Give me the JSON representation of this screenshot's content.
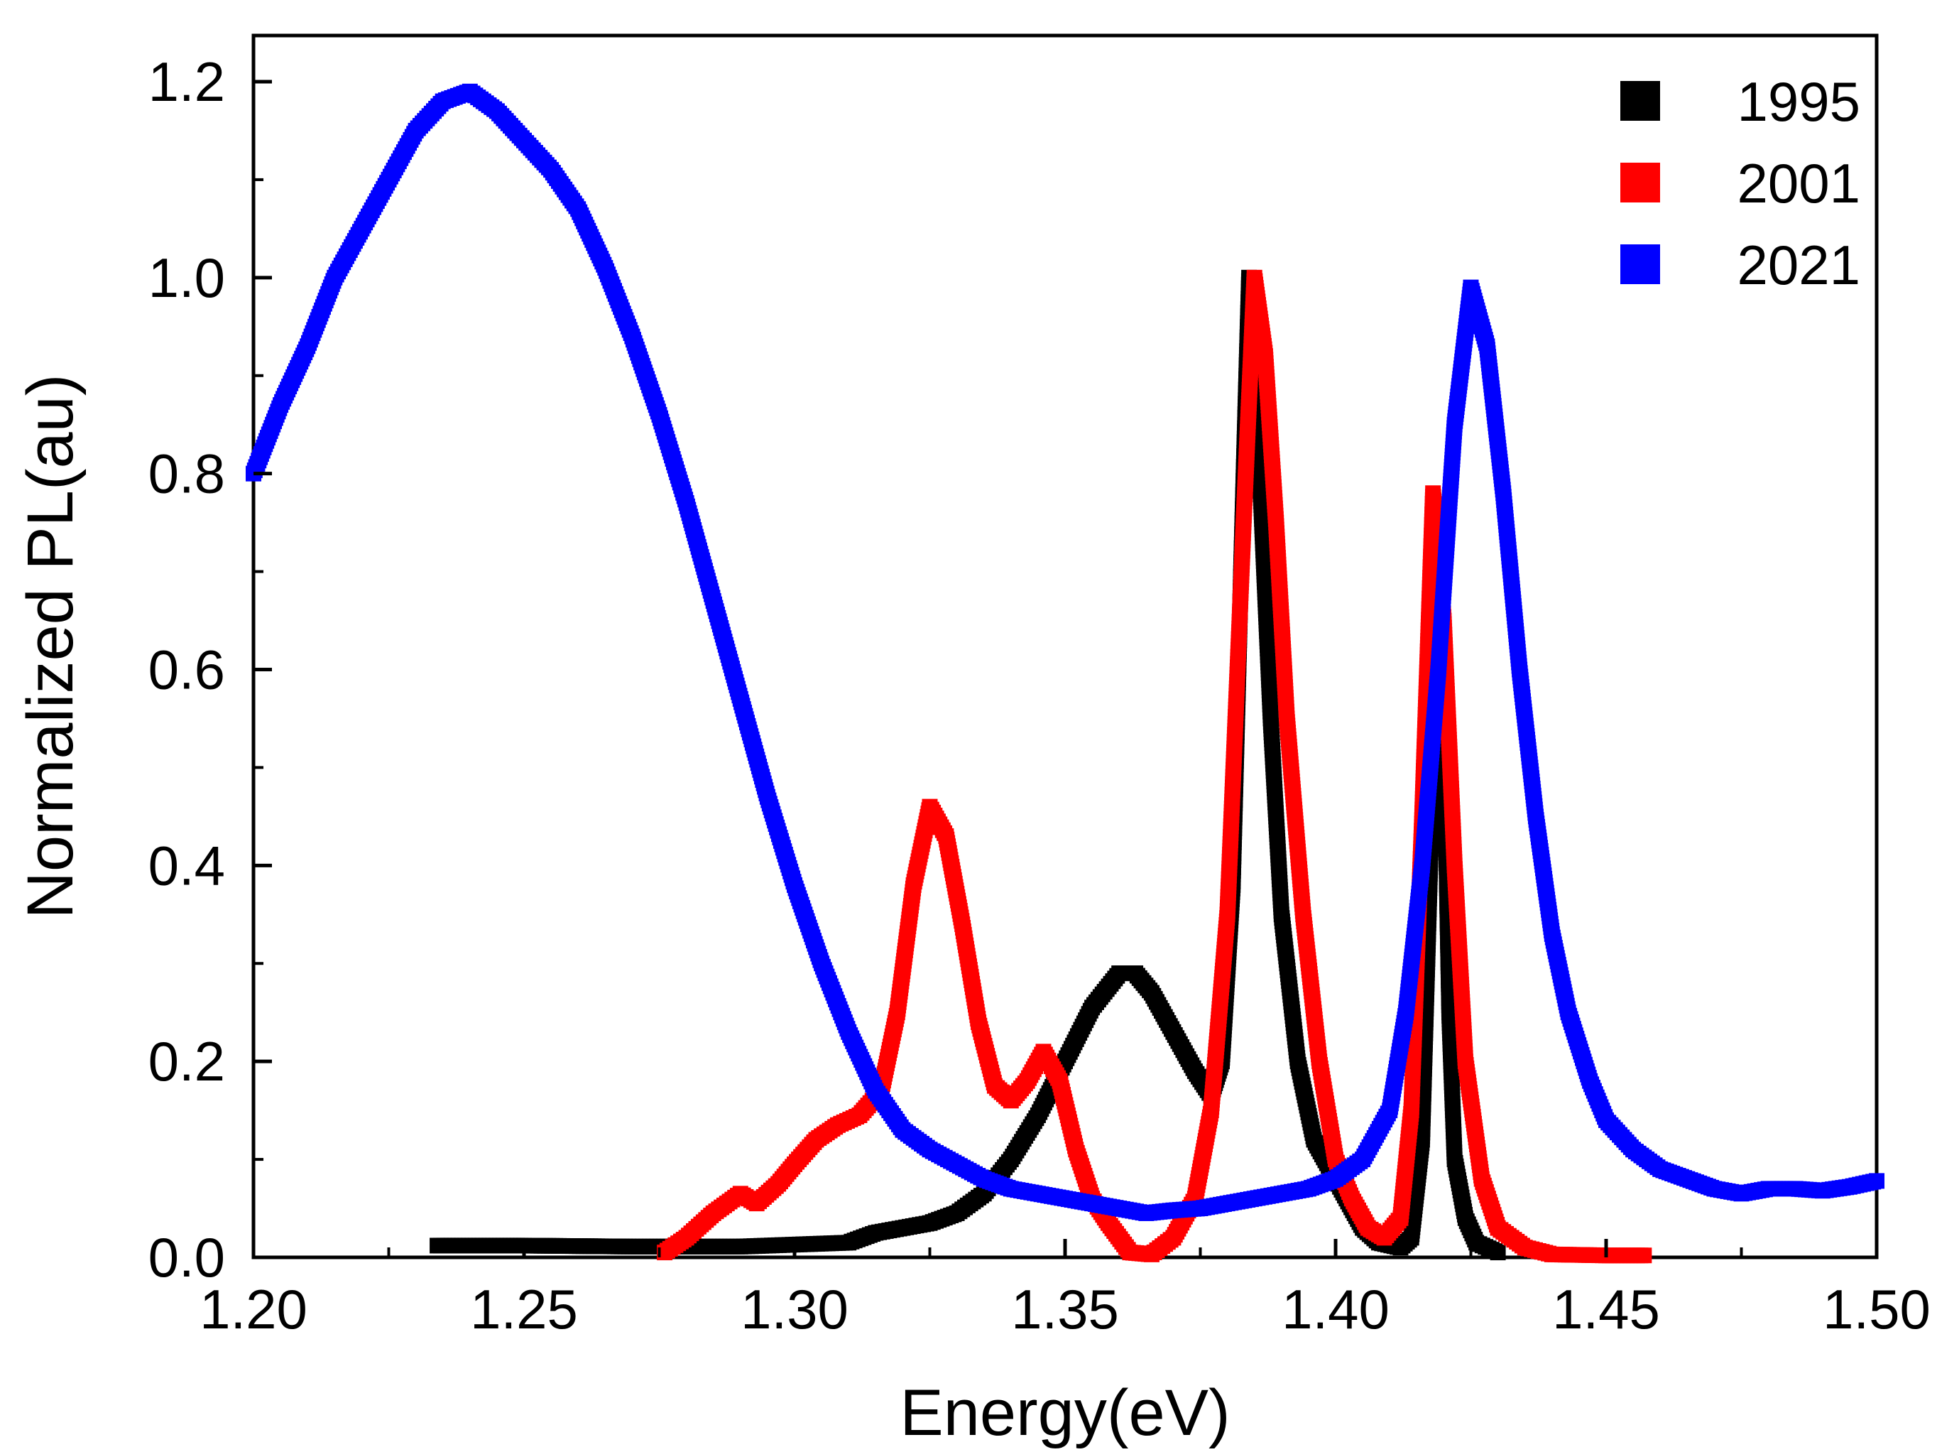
{
  "chart_data": {
    "type": "scatter",
    "title": "",
    "xlabel": "Energy(eV)",
    "ylabel": "Normalized PL(au)",
    "xlim": [
      1.2,
      1.5
    ],
    "ylim": [
      0.0,
      1.25
    ],
    "xticks": [
      1.2,
      1.25,
      1.3,
      1.35,
      1.4,
      1.45,
      1.5
    ],
    "xtick_labels": [
      "1.20",
      "1.25",
      "1.30",
      "1.35",
      "1.40",
      "1.45",
      "1.50"
    ],
    "yticks": [
      0.0,
      0.2,
      0.4,
      0.6,
      0.8,
      1.0,
      1.2
    ],
    "ytick_labels": [
      "0.0",
      "0.2",
      "0.4",
      "0.6",
      "0.8",
      "1.0",
      "1.2"
    ],
    "legend_position": "top-right",
    "series": [
      {
        "name": "1995",
        "color": "#000000",
        "points": [
          [
            1.234,
            0.012
          ],
          [
            1.25,
            0.012
          ],
          [
            1.27,
            0.011
          ],
          [
            1.29,
            0.011
          ],
          [
            1.31,
            0.015
          ],
          [
            1.315,
            0.025
          ],
          [
            1.32,
            0.03
          ],
          [
            1.325,
            0.035
          ],
          [
            1.33,
            0.045
          ],
          [
            1.335,
            0.065
          ],
          [
            1.34,
            0.1
          ],
          [
            1.345,
            0.145
          ],
          [
            1.35,
            0.2
          ],
          [
            1.355,
            0.255
          ],
          [
            1.36,
            0.29
          ],
          [
            1.363,
            0.29
          ],
          [
            1.366,
            0.27
          ],
          [
            1.37,
            0.23
          ],
          [
            1.374,
            0.19
          ],
          [
            1.377,
            0.165
          ],
          [
            1.379,
            0.2
          ],
          [
            1.381,
            0.38
          ],
          [
            1.383,
            0.8
          ],
          [
            1.384,
            1.0
          ],
          [
            1.385,
            0.95
          ],
          [
            1.386,
            0.8
          ],
          [
            1.388,
            0.55
          ],
          [
            1.39,
            0.35
          ],
          [
            1.393,
            0.2
          ],
          [
            1.396,
            0.12
          ],
          [
            1.399,
            0.09
          ],
          [
            1.402,
            0.06
          ],
          [
            1.405,
            0.03
          ],
          [
            1.408,
            0.015
          ],
          [
            1.412,
            0.01
          ],
          [
            1.414,
            0.02
          ],
          [
            1.416,
            0.12
          ],
          [
            1.418,
            0.5
          ],
          [
            1.419,
            0.75
          ],
          [
            1.42,
            0.55
          ],
          [
            1.421,
            0.25
          ],
          [
            1.422,
            0.1
          ],
          [
            1.424,
            0.04
          ],
          [
            1.426,
            0.015
          ],
          [
            1.43,
            0.005
          ]
        ]
      },
      {
        "name": "2001",
        "color": "#ff0000",
        "points": [
          [
            1.276,
            0.005
          ],
          [
            1.28,
            0.02
          ],
          [
            1.285,
            0.045
          ],
          [
            1.29,
            0.065
          ],
          [
            1.293,
            0.055
          ],
          [
            1.297,
            0.075
          ],
          [
            1.3,
            0.095
          ],
          [
            1.304,
            0.12
          ],
          [
            1.308,
            0.135
          ],
          [
            1.312,
            0.145
          ],
          [
            1.316,
            0.17
          ],
          [
            1.319,
            0.25
          ],
          [
            1.322,
            0.38
          ],
          [
            1.325,
            0.46
          ],
          [
            1.328,
            0.43
          ],
          [
            1.331,
            0.34
          ],
          [
            1.334,
            0.24
          ],
          [
            1.337,
            0.175
          ],
          [
            1.34,
            0.16
          ],
          [
            1.343,
            0.18
          ],
          [
            1.346,
            0.21
          ],
          [
            1.349,
            0.18
          ],
          [
            1.352,
            0.11
          ],
          [
            1.355,
            0.06
          ],
          [
            1.358,
            0.035
          ],
          [
            1.362,
            0.005
          ],
          [
            1.366,
            0.003
          ],
          [
            1.37,
            0.02
          ],
          [
            1.374,
            0.06
          ],
          [
            1.377,
            0.15
          ],
          [
            1.38,
            0.35
          ],
          [
            1.383,
            0.75
          ],
          [
            1.385,
            1.0
          ],
          [
            1.387,
            0.92
          ],
          [
            1.389,
            0.75
          ],
          [
            1.391,
            0.55
          ],
          [
            1.394,
            0.35
          ],
          [
            1.397,
            0.2
          ],
          [
            1.4,
            0.1
          ],
          [
            1.403,
            0.06
          ],
          [
            1.406,
            0.03
          ],
          [
            1.409,
            0.02
          ],
          [
            1.412,
            0.04
          ],
          [
            1.414,
            0.15
          ],
          [
            1.416,
            0.45
          ],
          [
            1.418,
            0.78
          ],
          [
            1.42,
            0.65
          ],
          [
            1.422,
            0.4
          ],
          [
            1.424,
            0.2
          ],
          [
            1.427,
            0.08
          ],
          [
            1.43,
            0.03
          ],
          [
            1.435,
            0.01
          ],
          [
            1.44,
            0.003
          ],
          [
            1.45,
            0.002
          ],
          [
            1.457,
            0.002
          ]
        ]
      },
      {
        "name": "2021",
        "color": "#0000ff",
        "points": [
          [
            1.2,
            0.8
          ],
          [
            1.205,
            0.87
          ],
          [
            1.21,
            0.93
          ],
          [
            1.215,
            1.0
          ],
          [
            1.22,
            1.05
          ],
          [
            1.225,
            1.1
          ],
          [
            1.23,
            1.15
          ],
          [
            1.235,
            1.18
          ],
          [
            1.24,
            1.19
          ],
          [
            1.245,
            1.17
          ],
          [
            1.25,
            1.14
          ],
          [
            1.255,
            1.11
          ],
          [
            1.26,
            1.07
          ],
          [
            1.265,
            1.01
          ],
          [
            1.27,
            0.94
          ],
          [
            1.275,
            0.86
          ],
          [
            1.28,
            0.77
          ],
          [
            1.285,
            0.67
          ],
          [
            1.29,
            0.57
          ],
          [
            1.295,
            0.47
          ],
          [
            1.3,
            0.38
          ],
          [
            1.305,
            0.3
          ],
          [
            1.31,
            0.23
          ],
          [
            1.315,
            0.17
          ],
          [
            1.32,
            0.13
          ],
          [
            1.325,
            0.11
          ],
          [
            1.33,
            0.095
          ],
          [
            1.335,
            0.08
          ],
          [
            1.34,
            0.07
          ],
          [
            1.345,
            0.065
          ],
          [
            1.35,
            0.06
          ],
          [
            1.355,
            0.055
          ],
          [
            1.36,
            0.05
          ],
          [
            1.365,
            0.045
          ],
          [
            1.37,
            0.048
          ],
          [
            1.375,
            0.05
          ],
          [
            1.38,
            0.055
          ],
          [
            1.385,
            0.06
          ],
          [
            1.39,
            0.065
          ],
          [
            1.395,
            0.07
          ],
          [
            1.4,
            0.08
          ],
          [
            1.405,
            0.1
          ],
          [
            1.41,
            0.15
          ],
          [
            1.413,
            0.25
          ],
          [
            1.416,
            0.4
          ],
          [
            1.419,
            0.6
          ],
          [
            1.422,
            0.85
          ],
          [
            1.425,
            0.99
          ],
          [
            1.428,
            0.93
          ],
          [
            1.431,
            0.78
          ],
          [
            1.434,
            0.6
          ],
          [
            1.437,
            0.45
          ],
          [
            1.44,
            0.33
          ],
          [
            1.443,
            0.25
          ],
          [
            1.447,
            0.18
          ],
          [
            1.45,
            0.14
          ],
          [
            1.455,
            0.11
          ],
          [
            1.46,
            0.09
          ],
          [
            1.465,
            0.08
          ],
          [
            1.47,
            0.07
          ],
          [
            1.475,
            0.065
          ],
          [
            1.48,
            0.07
          ],
          [
            1.485,
            0.07
          ],
          [
            1.49,
            0.068
          ],
          [
            1.495,
            0.072
          ],
          [
            1.5,
            0.078
          ]
        ]
      }
    ]
  }
}
